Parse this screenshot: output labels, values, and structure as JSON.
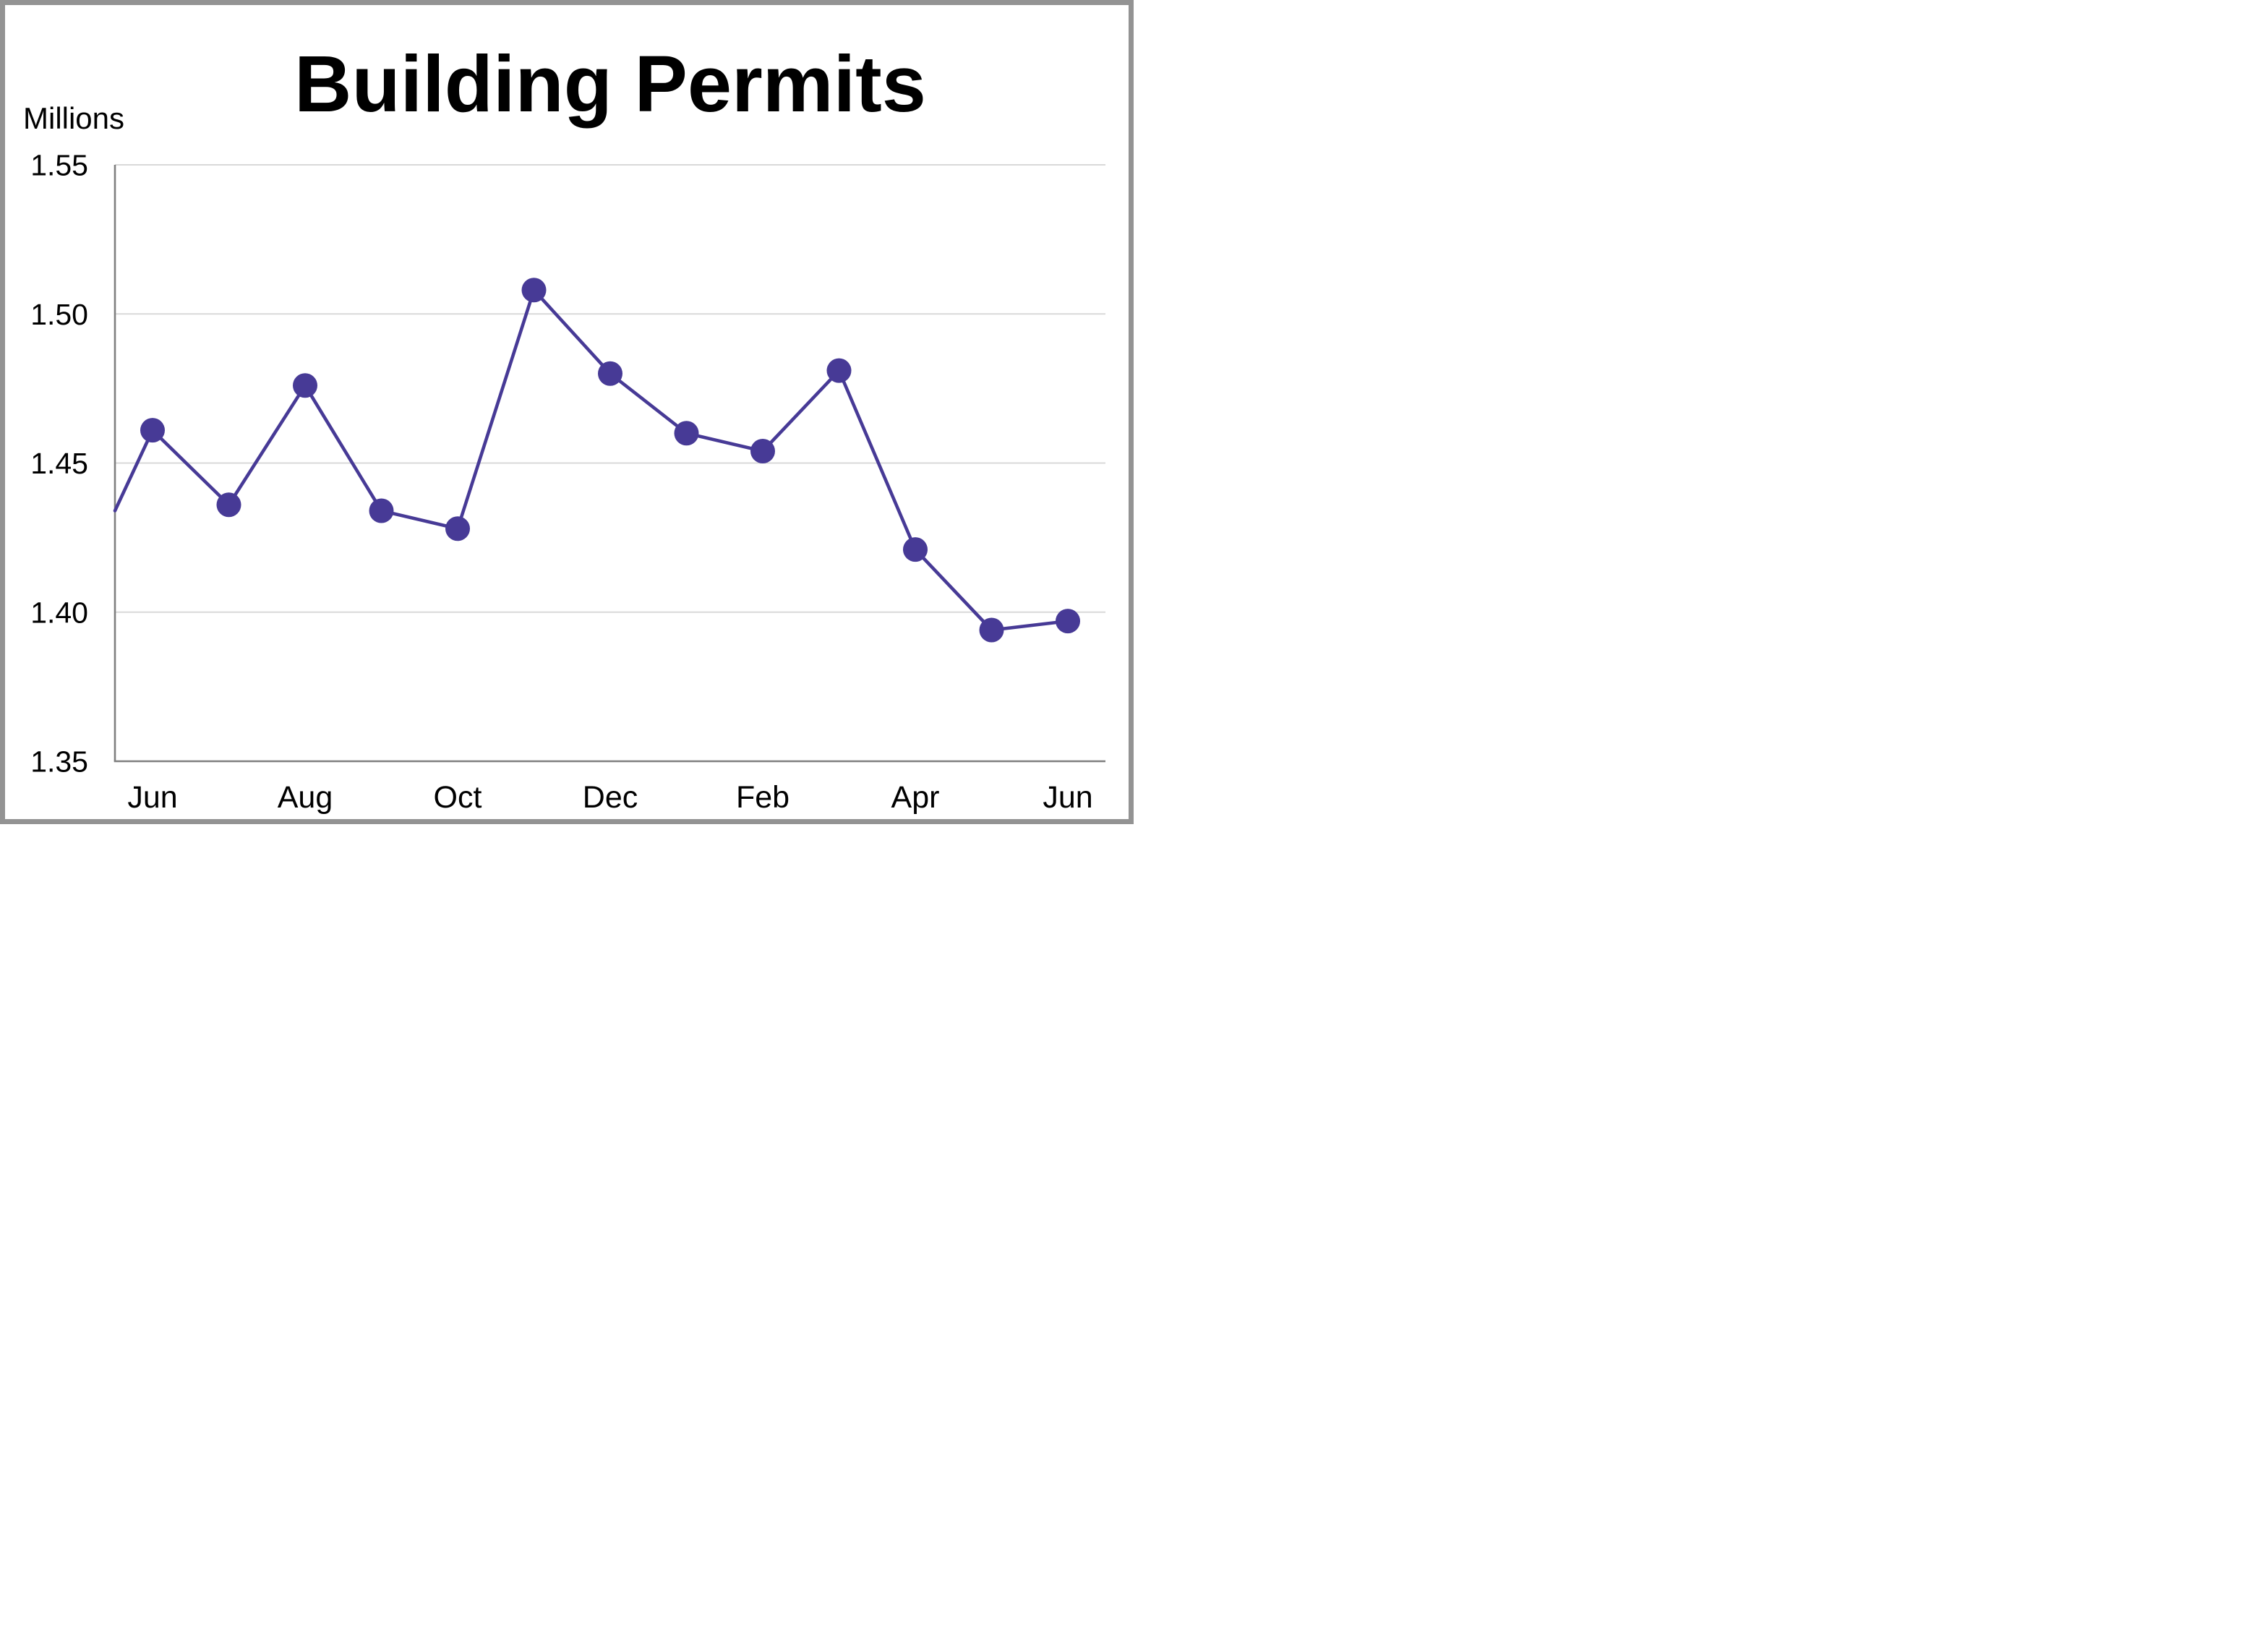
{
  "chart": {
    "title": "Building Permits",
    "y_unit_label": "Millions"
  },
  "chart_data": {
    "type": "line",
    "title": "Building Permits",
    "xlabel": "",
    "ylabel": "Millions",
    "x": [
      "Jun",
      "Jul",
      "Aug",
      "Sep",
      "Oct",
      "Nov",
      "Dec",
      "Jan",
      "Feb",
      "Mar",
      "Apr",
      "May",
      "Jun"
    ],
    "series": [
      {
        "name": "Building Permits",
        "values": [
          1.461,
          1.436,
          1.476,
          1.434,
          1.428,
          1.508,
          1.48,
          1.46,
          1.454,
          1.481,
          1.421,
          1.394,
          1.397
        ]
      }
    ],
    "edge_start_value": 1.434,
    "edge_start_note": "line enters clipped at left axis with no marker",
    "ylim": [
      1.35,
      1.55
    ],
    "y_tick_labels": [
      "1.55",
      "1.50",
      "1.45",
      "1.40",
      "1.35"
    ],
    "y_tick_values": [
      1.55,
      1.5,
      1.45,
      1.4,
      1.35
    ],
    "x_tick_labels": [
      "Jun",
      "Aug",
      "Oct",
      "Dec",
      "Feb",
      "Apr",
      "Jun"
    ],
    "x_tick_indices": [
      0,
      2,
      4,
      6,
      8,
      10,
      12
    ],
    "grid": "horizontal-only",
    "legend": "none",
    "marker": "filled-circle",
    "colors": {
      "series": "#473A96",
      "gridline": "#D9D9D9",
      "axis": "#7F7F7F",
      "frame_border": "#939393",
      "text": "#000000",
      "background": "#FFFFFF"
    }
  }
}
